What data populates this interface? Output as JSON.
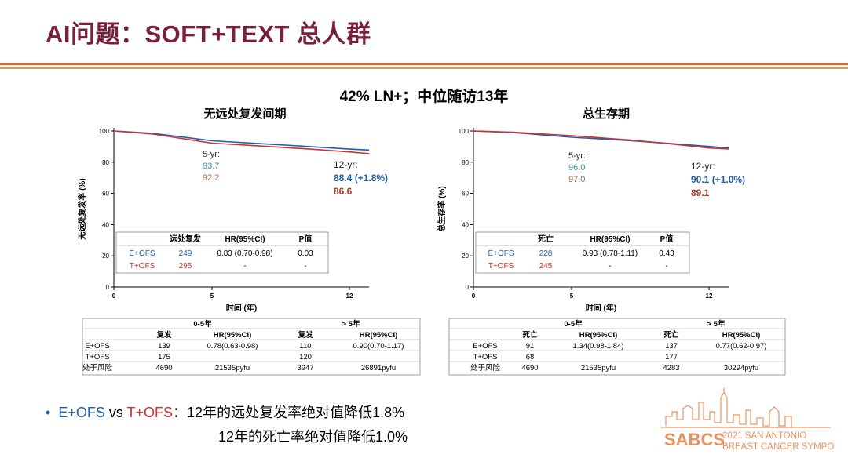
{
  "slide": {
    "title": "AI问题：SOFT+TEXT 总人群",
    "subtitle": "42% LN+；中位随访13年"
  },
  "colors": {
    "eofs": "#1f5fa8",
    "tofs": "#d03030",
    "title": "#7a1f3d",
    "rule": "#d8692c",
    "teal": "#3a8f8f",
    "brown": "#a06050"
  },
  "chart_data": [
    {
      "type": "line",
      "title": "无远处复发间期",
      "xlabel": "时间 (年)",
      "ylabel": "无远处复发率 (%)",
      "xlim": [
        0,
        13
      ],
      "ylim": [
        0,
        100
      ],
      "xticks": [
        "0",
        "5",
        "12"
      ],
      "yticks": [
        "0",
        "20",
        "40",
        "60",
        "80",
        "100"
      ],
      "series": [
        {
          "name": "E+OFS",
          "color": "#1f5fa8",
          "x": [
            0,
            2,
            5,
            8,
            10,
            12,
            13
          ],
          "y": [
            100,
            98.5,
            93.7,
            91.5,
            90,
            88.4,
            87.8
          ]
        },
        {
          "name": "T+OFS",
          "color": "#d03030",
          "x": [
            0,
            2,
            5,
            8,
            10,
            12,
            13
          ],
          "y": [
            100,
            98,
            92.2,
            90,
            88.4,
            86.6,
            85.5
          ]
        }
      ],
      "annotations": {
        "yr5_label": "5-yr:",
        "yr5_e": "93.7",
        "yr5_t": "92.2",
        "yr12_label": "12-yr:",
        "yr12_e": "88.4  (+1.8%)",
        "yr12_t": "86.6"
      },
      "inset_table": {
        "headers": [
          "",
          "远处复发",
          "HR(95%CI)",
          "P值"
        ],
        "rows": [
          [
            "E+OFS",
            "249",
            "0.83 (0.70-0.98)",
            "0.03"
          ],
          [
            "T+OFS",
            "295",
            "-",
            "-"
          ]
        ]
      },
      "bottom_table": {
        "group_headers": [
          "0-5年",
          "> 5年"
        ],
        "headers": [
          "",
          "复发",
          "HR(95%CI)",
          "复发",
          "HR(95%CI)"
        ],
        "rows": [
          [
            "E+OFS",
            "139",
            "0.78(0.63-0.98)",
            "110",
            "0.90(0.70-1.17)"
          ],
          [
            "T+OFS",
            "175",
            "",
            "120",
            ""
          ],
          [
            "处于风险",
            "4690",
            "21535pyfu",
            "3947",
            "26891pyfu"
          ]
        ]
      }
    },
    {
      "type": "line",
      "title": "总生存期",
      "xlabel": "时间 (年)",
      "ylabel": "总生存率 (%)",
      "xlim": [
        0,
        13
      ],
      "ylim": [
        0,
        100
      ],
      "xticks": [
        "0",
        "5",
        "12"
      ],
      "yticks": [
        "0",
        "20",
        "40",
        "60",
        "80",
        "100"
      ],
      "series": [
        {
          "name": "E+OFS",
          "color": "#1f5fa8",
          "x": [
            0,
            2,
            5,
            8,
            10,
            12,
            13
          ],
          "y": [
            100,
            99,
            96,
            93.8,
            92,
            90.1,
            89
          ]
        },
        {
          "name": "T+OFS",
          "color": "#d03030",
          "x": [
            0,
            2,
            5,
            8,
            10,
            12,
            13
          ],
          "y": [
            100,
            99.2,
            97,
            94.2,
            91.8,
            89.1,
            88.5
          ]
        }
      ],
      "annotations": {
        "yr5_label": "5-yr:",
        "yr5_e": "96.0",
        "yr5_t": "97.0",
        "yr12_label": "12-yr:",
        "yr12_e": "90.1  (+1.0%)",
        "yr12_t": "89.1"
      },
      "inset_table": {
        "headers": [
          "",
          "死亡",
          "HR(95%CI)",
          "P值"
        ],
        "rows": [
          [
            "E+OFS",
            "228",
            "0.93 (0.78-1.11)",
            "0.43"
          ],
          [
            "T+OFS",
            "245",
            "-",
            "-"
          ]
        ]
      },
      "bottom_table": {
        "group_headers": [
          "0-5年",
          "> 5年"
        ],
        "headers": [
          "",
          "死亡",
          "HR(95%CI)",
          "死亡",
          "HR(95%CI)"
        ],
        "rows": [
          [
            "E+OFS",
            "91",
            "1.34(0.98-1.84)",
            "137",
            "0.77(0.62-0.97)"
          ],
          [
            "T+OFS",
            "68",
            "",
            "177",
            ""
          ],
          [
            "处于风险",
            "4690",
            "21535pyfu",
            "4283",
            "30294pyfu"
          ]
        ]
      }
    }
  ],
  "bullet": {
    "e_label": "E+OFS",
    "vs": " vs ",
    "t_label": "T+OFS",
    "line1_rest": "：12年的远处复发率绝对值降低1.8%",
    "line2": "12年的死亡率绝对值降低1.0%"
  },
  "logo": {
    "name": "SABCS",
    "line1": "2021 SAN ANTONIO",
    "line2": "BREAST CANCER SYMPOSIUM"
  }
}
